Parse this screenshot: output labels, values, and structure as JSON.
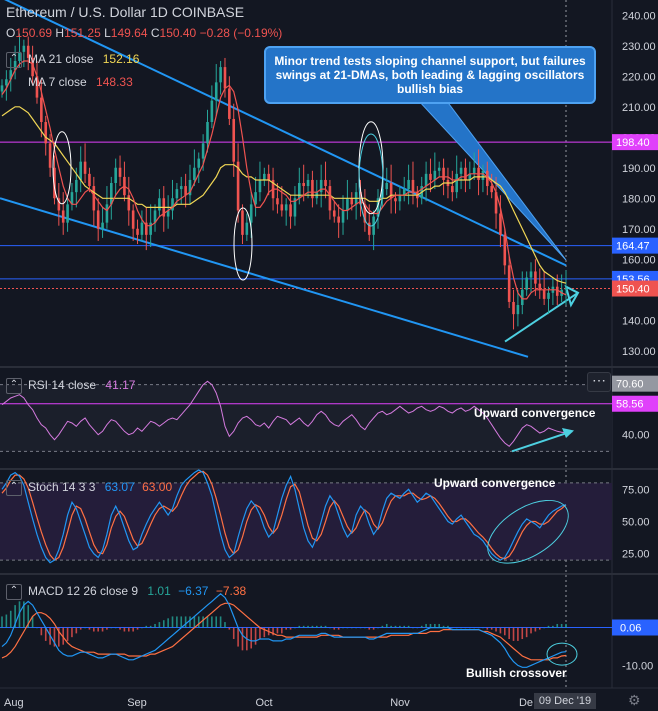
{
  "header": {
    "title": "Ethereum / U.S. Dollar  1D  COINBASE",
    "ohlc": [
      {
        "k": "O",
        "v": "150.69"
      },
      {
        "k": "H",
        "v": "151.25"
      },
      {
        "k": "L",
        "v": "149.64"
      },
      {
        "k": "C",
        "v": "150.40"
      },
      {
        "k": "",
        "v": "−0.28 (−0.19%)"
      }
    ]
  },
  "legends": {
    "ma21": {
      "label": "MA 21 close",
      "value": "152.16",
      "color": "#f0d655"
    },
    "ma7": {
      "label": "MA 7 close",
      "value": "148.33",
      "color": "#ef5350"
    },
    "rsi": {
      "label": "RSI 14 close",
      "value": "41.17",
      "color": "#d47ade"
    },
    "stoch": {
      "label": "Stoch 14 3 3",
      "value_k": "63.07",
      "value_d": "63.00",
      "color_k": "#2196f3",
      "color_d": "#ff7043"
    },
    "macd": {
      "label": "MACD 12 26 close 9",
      "value_hist": "1.01",
      "value_macd": "−6.37",
      "value_signal": "−7.38",
      "color_hist": "#26a69a",
      "color_macd": "#2196f3",
      "color_signal": "#ff7043"
    }
  },
  "annotations": {
    "callout": "Minor trend tests sloping channel support, but failures swings at 21-DMAs, both leading & lagging oscillators bullish bias",
    "rsi_note": "Upward convergence",
    "stoch_note": "Upward convergence",
    "macd_note": "Bullish crossover"
  },
  "time_axis": {
    "labels": [
      "Aug",
      "Sep",
      "Oct",
      "Nov",
      "De"
    ],
    "cursor_label": "09 Dec '19"
  },
  "chart_data": [
    {
      "type": "candlestick",
      "name": "price",
      "ylim": [
        125,
        245
      ],
      "y_ticks": [
        130,
        140,
        150,
        160,
        170,
        180,
        190,
        200,
        210,
        220,
        230,
        240
      ],
      "price_labels": [
        {
          "value": 198.4,
          "text": "198.40",
          "color": "#e040fb"
        },
        {
          "value": 164.47,
          "text": "164.47",
          "color": "#2962ff"
        },
        {
          "value": 153.56,
          "text": "153.56",
          "color": "#2962ff"
        },
        {
          "value": 150.4,
          "text": "150.40",
          "color": "#ef5350"
        }
      ],
      "horizontal_lines": [
        {
          "value": 198.4,
          "color": "#e040fb"
        },
        {
          "value": 164.47,
          "color": "#2962ff"
        },
        {
          "value": 153.56,
          "color": "#2962ff"
        },
        {
          "value": 150.4,
          "color": "#ef5350",
          "dashed": true
        }
      ],
      "close": [
        217,
        219,
        222,
        225,
        228,
        230,
        226,
        220,
        213,
        205,
        198,
        190,
        180,
        176,
        172,
        178,
        182,
        186,
        192,
        188,
        184,
        176,
        170,
        172,
        178,
        185,
        190,
        187,
        181,
        176,
        170,
        168,
        172,
        168,
        172,
        176,
        180,
        174,
        176,
        180,
        183,
        184,
        181,
        186,
        190,
        193,
        198,
        205,
        212,
        218,
        223,
        216,
        206,
        192,
        176,
        168,
        172,
        178,
        182,
        186,
        188,
        186,
        180,
        178,
        176,
        178,
        174,
        180,
        185,
        184,
        186,
        180,
        182,
        186,
        184,
        176,
        174,
        172,
        176,
        180,
        178,
        182,
        178,
        172,
        168,
        174,
        180,
        183,
        185,
        180,
        179,
        181,
        183,
        186,
        182,
        180,
        184,
        188,
        186,
        189,
        190,
        186,
        184,
        182,
        188,
        190,
        186,
        188,
        190,
        186,
        189,
        184,
        182,
        175,
        168,
        158,
        146,
        142,
        145,
        150,
        154,
        156,
        152,
        150,
        147,
        149,
        151,
        148,
        150,
        150.4
      ],
      "ma21": [
        207,
        208,
        209,
        210,
        210,
        209,
        208,
        206,
        204,
        202,
        200,
        199,
        198,
        196,
        194,
        192,
        190,
        188,
        186,
        184,
        183,
        182,
        181,
        180,
        180,
        180,
        180,
        180,
        180,
        180,
        179,
        178,
        178,
        177,
        177,
        177,
        177,
        177,
        177,
        177,
        178,
        178,
        178,
        178,
        179,
        180,
        181,
        183,
        185,
        187,
        190,
        191,
        191,
        191,
        190,
        188,
        187,
        187,
        186,
        186,
        186,
        186,
        185,
        184,
        183,
        182,
        181,
        181,
        181,
        181,
        181,
        181,
        181,
        181,
        181,
        181,
        180,
        180,
        180,
        180,
        180,
        180,
        180,
        180,
        179,
        179,
        179,
        180,
        180,
        181,
        181,
        181,
        181,
        181,
        181,
        181,
        182,
        183,
        183,
        184,
        184,
        185,
        185,
        185,
        186,
        186,
        186,
        186,
        187,
        187,
        187,
        187,
        186,
        185,
        184,
        182,
        179,
        176,
        173,
        170,
        167,
        164,
        161,
        158,
        156,
        155,
        154,
        153,
        152.5,
        152.16
      ],
      "ma7": [
        214,
        216,
        219,
        222,
        224,
        225,
        225,
        224,
        220,
        215,
        209,
        203,
        196,
        190,
        184,
        180,
        178,
        178,
        180,
        182,
        183,
        181,
        179,
        177,
        176,
        178,
        181,
        183,
        184,
        183,
        180,
        176,
        173,
        171,
        171,
        172,
        174,
        175,
        176,
        177,
        179,
        180,
        181,
        182,
        185,
        188,
        191,
        196,
        201,
        207,
        213,
        216,
        217,
        215,
        209,
        200,
        190,
        182,
        177,
        177,
        179,
        182,
        183,
        183,
        182,
        181,
        179,
        179,
        180,
        181,
        182,
        182,
        182,
        183,
        183,
        181,
        179,
        177,
        176,
        176,
        177,
        178,
        179,
        178,
        176,
        175,
        175,
        177,
        179,
        180,
        181,
        181,
        181,
        182,
        182,
        182,
        183,
        184,
        185,
        186,
        187,
        187,
        187,
        186,
        186,
        187,
        187,
        188,
        188,
        188,
        188,
        187,
        185,
        182,
        177,
        170,
        161,
        154,
        149,
        147,
        147,
        149,
        150,
        150,
        150,
        150,
        150,
        150,
        149,
        148.33
      ]
    },
    {
      "type": "line",
      "name": "rsi",
      "ylim": [
        20,
        80
      ],
      "y_ticks": [
        40
      ],
      "price_labels": [
        {
          "value": 70.6,
          "text": "70.60",
          "color": "#9598a1"
        },
        {
          "value": 58.56,
          "text": "58.56",
          "color": "#e040fb"
        }
      ],
      "values": [
        58,
        60,
        62,
        63,
        64,
        62,
        58,
        55,
        50,
        46,
        44,
        40,
        37,
        40,
        44,
        48,
        47,
        45,
        48,
        50,
        46,
        43,
        40,
        42,
        46,
        49,
        48,
        45,
        42,
        40,
        41,
        44,
        42,
        45,
        48,
        47,
        45,
        47,
        49,
        50,
        49,
        52,
        55,
        58,
        62,
        66,
        70,
        72,
        70,
        65,
        57,
        45,
        39,
        42,
        47,
        50,
        51,
        49,
        46,
        45,
        47,
        44,
        48,
        51,
        50,
        49,
        46,
        48,
        50,
        47,
        45,
        48,
        52,
        54,
        52,
        48,
        46,
        45,
        48,
        50,
        52,
        49,
        45,
        43,
        47,
        50,
        53,
        54,
        52,
        53,
        55,
        57,
        55,
        53,
        54,
        56,
        57,
        55,
        54,
        55,
        57,
        56,
        54,
        53,
        55,
        56,
        54,
        55,
        57,
        55,
        53,
        50,
        46,
        42,
        38,
        35,
        33,
        36,
        40,
        44,
        46,
        45,
        43,
        41,
        42,
        44,
        43,
        42,
        41.5,
        41.17
      ]
    },
    {
      "type": "line",
      "name": "stochastic",
      "ylim": [
        10,
        90
      ],
      "y_ticks": [
        25,
        50,
        75
      ],
      "k": [
        75,
        80,
        86,
        88,
        85,
        78,
        65,
        52,
        40,
        30,
        22,
        18,
        20,
        28,
        40,
        55,
        65,
        60,
        50,
        40,
        30,
        25,
        22,
        28,
        40,
        55,
        62,
        55,
        45,
        35,
        28,
        30,
        40,
        48,
        55,
        60,
        65,
        60,
        55,
        60,
        70,
        78,
        82,
        85,
        88,
        90,
        88,
        80,
        70,
        55,
        40,
        28,
        22,
        25,
        38,
        50,
        60,
        66,
        62,
        55,
        45,
        38,
        42,
        55,
        68,
        78,
        85,
        75,
        60,
        45,
        35,
        30,
        38,
        50,
        62,
        70,
        65,
        55,
        45,
        38,
        42,
        55,
        62,
        58,
        48,
        40,
        45,
        58,
        68,
        72,
        70,
        68,
        72,
        75,
        70,
        65,
        68,
        72,
        70,
        65,
        60,
        55,
        50,
        48,
        52,
        55,
        50,
        45,
        40,
        38,
        35,
        30,
        25,
        22,
        20,
        22,
        28,
        35,
        42,
        48,
        52,
        50,
        48,
        45,
        50,
        55,
        58,
        60,
        62,
        63.07
      ],
      "d": [
        72,
        76,
        82,
        86,
        86,
        83,
        76,
        65,
        53,
        42,
        32,
        24,
        20,
        22,
        30,
        42,
        55,
        62,
        60,
        52,
        42,
        32,
        26,
        25,
        32,
        45,
        54,
        58,
        54,
        45,
        36,
        31,
        33,
        40,
        48,
        55,
        60,
        62,
        60,
        58,
        62,
        70,
        77,
        82,
        85,
        88,
        89,
        86,
        79,
        68,
        55,
        41,
        30,
        25,
        28,
        38,
        50,
        59,
        63,
        61,
        55,
        46,
        41,
        45,
        55,
        67,
        77,
        79,
        73,
        60,
        47,
        37,
        35,
        40,
        50,
        61,
        66,
        62,
        54,
        46,
        41,
        45,
        53,
        59,
        56,
        48,
        44,
        49,
        58,
        66,
        70,
        70,
        70,
        72,
        72,
        69,
        67,
        68,
        70,
        68,
        64,
        59,
        54,
        50,
        50,
        52,
        52,
        49,
        45,
        41,
        38,
        34,
        29,
        25,
        22,
        21,
        23,
        28,
        35,
        42,
        47,
        50,
        50,
        48,
        48,
        50,
        54,
        58,
        60,
        63.0
      ]
    },
    {
      "type": "bar+line",
      "name": "macd",
      "ylim": [
        -16,
        14
      ],
      "y_ticks": [
        -10
      ],
      "price_labels": [
        {
          "value": 0.06,
          "text": "0.06",
          "color": "#2962ff"
        }
      ],
      "macd": [
        -5,
        -4,
        -2,
        1,
        4,
        6,
        7,
        6,
        4,
        2,
        0,
        -2,
        -4,
        -6,
        -7,
        -7.5,
        -7.5,
        -7,
        -6.5,
        -6.5,
        -7,
        -7.5,
        -8,
        -8,
        -7.5,
        -7,
        -7,
        -7.5,
        -8,
        -8.5,
        -8.5,
        -8,
        -7.5,
        -7,
        -6.5,
        -6,
        -5,
        -4,
        -3,
        -2,
        -1,
        0,
        1,
        2,
        3,
        4,
        5,
        6,
        7,
        8,
        9,
        8,
        6,
        3,
        0,
        -2,
        -3,
        -3.5,
        -3.5,
        -3,
        -3,
        -3,
        -3.5,
        -3.5,
        -3.5,
        -3,
        -3,
        -2.5,
        -2,
        -2,
        -2,
        -2,
        -2,
        -1.5,
        -1.5,
        -2,
        -2.5,
        -2.5,
        -2.5,
        -2.5,
        -2.5,
        -2.5,
        -2.5,
        -2.5,
        -3,
        -3,
        -2.5,
        -2,
        -1.5,
        -1.5,
        -1.5,
        -1.5,
        -1.5,
        -1.5,
        -1.5,
        -1.5,
        -1,
        -0.5,
        0,
        0,
        0,
        0,
        0,
        -0.5,
        -0.5,
        -0.5,
        -0.5,
        -0.5,
        -0.5,
        -0.5,
        -1,
        -1.5,
        -2,
        -3,
        -4,
        -5.5,
        -7.5,
        -9,
        -10,
        -10.5,
        -10.5,
        -10,
        -9.5,
        -9,
        -8.5,
        -8,
        -7.5,
        -7,
        -6.5,
        -6.37
      ],
      "signal": [
        -8,
        -7.5,
        -6.5,
        -5,
        -3,
        -1,
        1,
        3,
        4,
        4,
        3.5,
        2.5,
        1,
        -1,
        -2.5,
        -4,
        -5,
        -5.5,
        -6,
        -6.5,
        -6.5,
        -6.5,
        -7,
        -7,
        -7,
        -7,
        -7,
        -7,
        -7,
        -7.5,
        -7.5,
        -7.5,
        -7.5,
        -7.5,
        -7,
        -7,
        -6.5,
        -6,
        -5.5,
        -5,
        -4,
        -3,
        -2,
        -1,
        0,
        1,
        2,
        3,
        4,
        5,
        6,
        6.5,
        6.5,
        6,
        5,
        4,
        3,
        2,
        1,
        0,
        -0.5,
        -1,
        -1.5,
        -2,
        -2,
        -2.5,
        -2.5,
        -2.5,
        -2.5,
        -2.5,
        -2.5,
        -2.5,
        -2.5,
        -2,
        -2,
        -2,
        -2,
        -2,
        -2.5,
        -2.5,
        -2.5,
        -2.5,
        -2.5,
        -2.5,
        -2.5,
        -2.5,
        -2.5,
        -2.5,
        -2.5,
        -2,
        -2,
        -2,
        -2,
        -2,
        -1.5,
        -1.5,
        -1.5,
        -1.5,
        -1,
        -1,
        -1,
        -0.5,
        -0.5,
        -0.5,
        -0.5,
        -0.5,
        -0.5,
        -0.5,
        -0.5,
        -0.5,
        -1,
        -1,
        -1.5,
        -2,
        -2.5,
        -3.5,
        -4.5,
        -5.5,
        -6.5,
        -7.5,
        -8,
        -8.5,
        -8.5,
        -8.5,
        -8.5,
        -8.5,
        -8,
        -8,
        -7.5,
        -7.38
      ]
    }
  ]
}
